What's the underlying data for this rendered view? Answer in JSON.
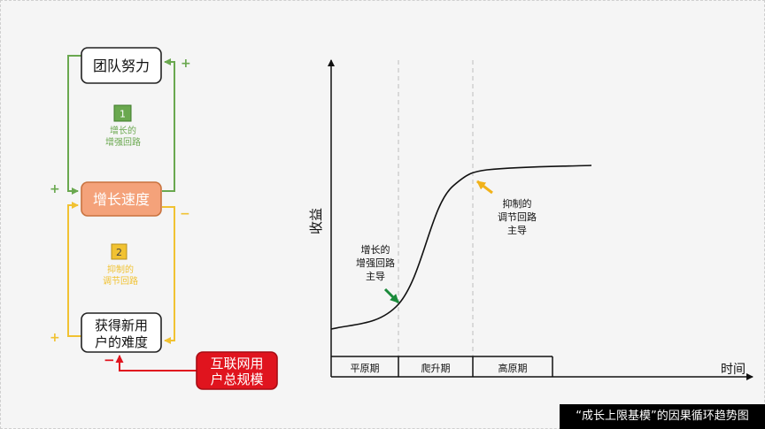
{
  "loop": {
    "nodes": {
      "team_effort": "团队努力",
      "growth_speed": "增长速度",
      "acquire_difficulty_line1": "获得新用",
      "acquire_difficulty_line2": "户的难度",
      "market_total_line1": "互联网用",
      "market_total_line2": "户总规模"
    },
    "reinforcing": {
      "number": "1",
      "label_line1": "增长的",
      "label_line2": "增强回路"
    },
    "balancing": {
      "number": "2",
      "label_line1": "抑制的",
      "label_line2": "调节回路"
    },
    "signs": {
      "team_to_speed": "+",
      "speed_to_team": "+",
      "speed_to_difficulty": "−",
      "difficulty_to_speed": "+",
      "market_to_difficulty": "−"
    },
    "colors": {
      "reinforcing": "#6aa84f",
      "balancing": "#f1c232",
      "market": "#e0141e",
      "growth_node": "#f4a27a"
    }
  },
  "curve": {
    "y_axis_label": "收益",
    "x_axis_label": "时间",
    "phases": [
      "平原期",
      "爬升期",
      "高原期"
    ],
    "annotation_growth": [
      "增长的",
      "增强回路",
      "主导"
    ],
    "annotation_limit": [
      "抑制的",
      "调节回路",
      "主导"
    ]
  },
  "caption": "“成长上限基模”的因果循环趋势图"
}
